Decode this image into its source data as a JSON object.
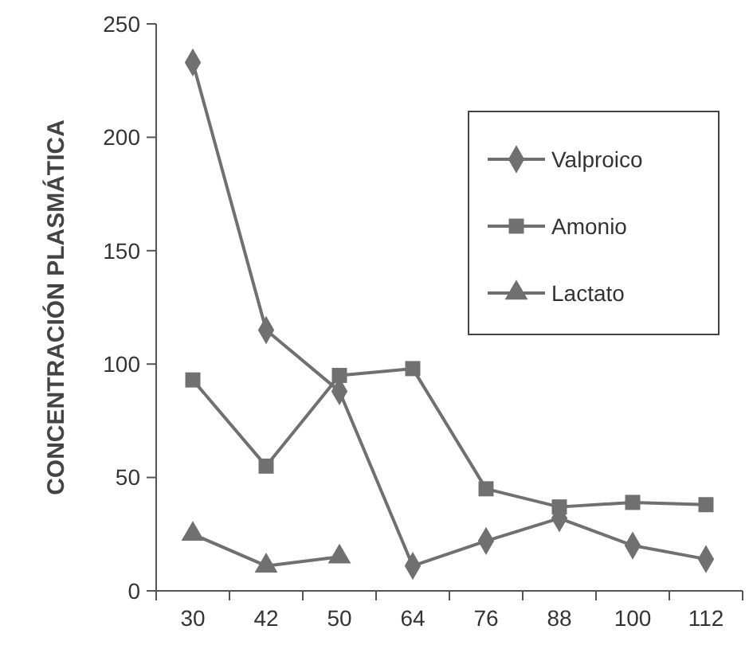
{
  "chart_data": {
    "type": "line",
    "ylabel": "CONCENTRACIÓN PLASMÁTICA",
    "categories": [
      "30",
      "42",
      "50",
      "64",
      "76",
      "88",
      "100",
      "112"
    ],
    "ylim": [
      0,
      250
    ],
    "yticks": [
      0,
      50,
      100,
      150,
      200,
      250
    ],
    "grid": false,
    "legend": "top right",
    "line_style": "solid",
    "series": [
      {
        "name": "Valproico",
        "color": "#707070",
        "marker": "diamond",
        "values": [
          233,
          115,
          88,
          11,
          22,
          32,
          20,
          14
        ]
      },
      {
        "name": "Amonio",
        "color": "#707070",
        "marker": "square",
        "values": [
          93,
          55,
          95,
          98,
          45,
          37,
          39,
          38
        ]
      },
      {
        "name": "Lactato",
        "color": "#707070",
        "marker": "triangle",
        "values": [
          25,
          11,
          15,
          null,
          null,
          null,
          null,
          null
        ]
      }
    ]
  }
}
